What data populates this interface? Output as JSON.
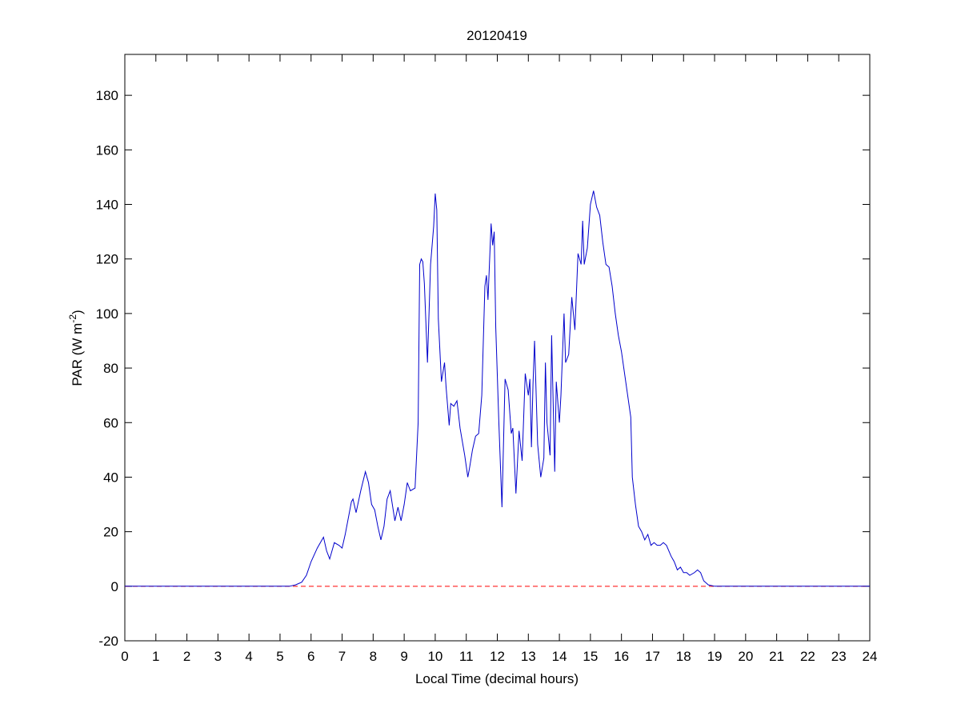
{
  "chart_data": {
    "type": "line",
    "title": "20120419",
    "xlabel": "Local Time (decimal hours)",
    "ylabel": {
      "text": "PAR (W m",
      "superscript": "-2",
      "suffix": ")"
    },
    "x": [
      0,
      5.3,
      5.5,
      5.7,
      5.85,
      6.0,
      6.2,
      6.4,
      6.5,
      6.6,
      6.75,
      6.9,
      7.0,
      7.1,
      7.3,
      7.35,
      7.45,
      7.6,
      7.75,
      7.85,
      7.95,
      8.05,
      8.15,
      8.25,
      8.35,
      8.45,
      8.55,
      8.7,
      8.8,
      8.9,
      9.0,
      9.1,
      9.2,
      9.35,
      9.45,
      9.5,
      9.55,
      9.6,
      9.65,
      9.75,
      9.85,
      9.95,
      10.0,
      10.05,
      10.1,
      10.2,
      10.3,
      10.35,
      10.45,
      10.5,
      10.6,
      10.7,
      10.8,
      10.95,
      11.05,
      11.1,
      11.2,
      11.3,
      11.4,
      11.5,
      11.6,
      11.65,
      11.7,
      11.8,
      11.85,
      11.9,
      11.95,
      12.05,
      12.15,
      12.25,
      12.35,
      12.45,
      12.5,
      12.6,
      12.7,
      12.8,
      12.9,
      13.0,
      13.05,
      13.1,
      13.15,
      13.2,
      13.3,
      13.4,
      13.5,
      13.55,
      13.6,
      13.7,
      13.75,
      13.85,
      13.9,
      14.0,
      14.05,
      14.15,
      14.2,
      14.3,
      14.4,
      14.5,
      14.6,
      14.7,
      14.75,
      14.8,
      14.9,
      15.0,
      15.1,
      15.2,
      15.3,
      15.4,
      15.5,
      15.6,
      15.7,
      15.8,
      15.9,
      16.0,
      16.1,
      16.2,
      16.3,
      16.35,
      16.45,
      16.55,
      16.65,
      16.75,
      16.85,
      16.95,
      17.05,
      17.15,
      17.25,
      17.35,
      17.45,
      17.6,
      17.7,
      17.8,
      17.9,
      18.0,
      18.1,
      18.2,
      18.35,
      18.45,
      18.55,
      18.65,
      18.8,
      19.0,
      24
    ],
    "series": [
      {
        "color": "#0000cc",
        "values": [
          0,
          0,
          0.5,
          1.5,
          4,
          9,
          14,
          18,
          13,
          10,
          16,
          15,
          14,
          19,
          31,
          32,
          27,
          35,
          42,
          38,
          30,
          28,
          22,
          17,
          22,
          32,
          35,
          24,
          29,
          24,
          30,
          38,
          35,
          36,
          60,
          118,
          120,
          119,
          111,
          82,
          118,
          132,
          144,
          138,
          98,
          75,
          82,
          73,
          59,
          67,
          66,
          68,
          58,
          48,
          40,
          43,
          50,
          55,
          56,
          70,
          110,
          114,
          105,
          133,
          125,
          130,
          95,
          60,
          29,
          76,
          72,
          56,
          58,
          34,
          57,
          46,
          78,
          70,
          76,
          51,
          74,
          90,
          52,
          40,
          47,
          82,
          60,
          48,
          92,
          42,
          75,
          60,
          70,
          100,
          82,
          85,
          106,
          94,
          122,
          118,
          134,
          118,
          124,
          140,
          145,
          139,
          136,
          126,
          118,
          117,
          110,
          100,
          92,
          86,
          78,
          70,
          62,
          40,
          30,
          22,
          20,
          17,
          19,
          15,
          16,
          15,
          15,
          16,
          15,
          11,
          9,
          6,
          7,
          5,
          5,
          4,
          5,
          6,
          5,
          2,
          0.5,
          0,
          0
        ]
      }
    ],
    "reference_line": {
      "value": 0,
      "color": "#ff0000",
      "style": "dashed"
    },
    "xlim": [
      0,
      24
    ],
    "xticks": [
      0,
      1,
      2,
      3,
      4,
      5,
      6,
      7,
      8,
      9,
      10,
      11,
      12,
      13,
      14,
      15,
      16,
      17,
      18,
      19,
      20,
      21,
      22,
      23,
      24
    ],
    "ylim": [
      -20,
      195
    ],
    "yticks": [
      -20,
      0,
      20,
      40,
      60,
      80,
      100,
      120,
      140,
      160,
      180
    ],
    "grid": false
  }
}
